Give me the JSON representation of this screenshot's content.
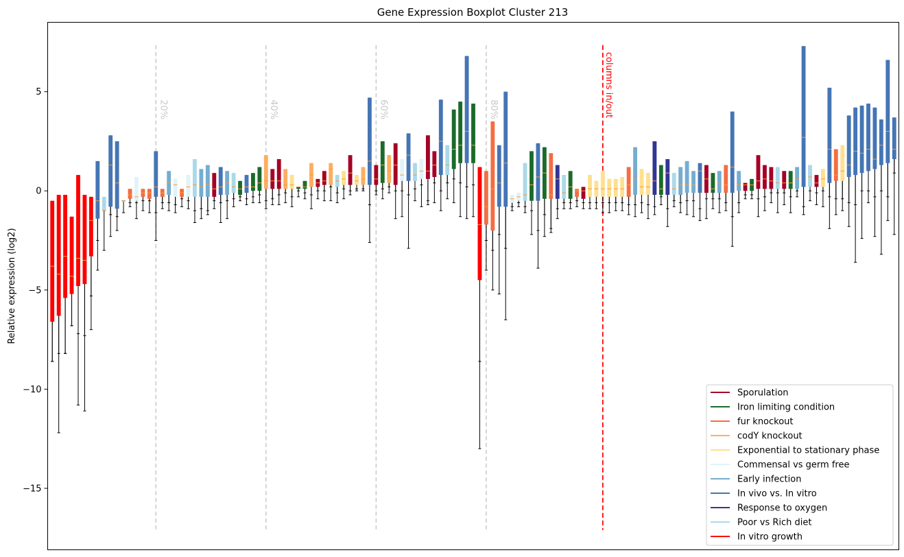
{
  "chart_data": {
    "type": "boxplot",
    "title": "Gene Expression Boxplot Cluster 213",
    "xlabel": "",
    "ylabel": "Relative expression (log2)",
    "ylim": [
      -18.1,
      8.5
    ],
    "yticks": [
      5,
      0,
      -5,
      -10,
      -15
    ],
    "grid": false,
    "legend_position": "bottom-right",
    "legend": [
      {
        "name": "Sporulation",
        "color": "#a50026"
      },
      {
        "name": "Iron limiting condition",
        "color": "#1a6b2a"
      },
      {
        "name": "fur knockout",
        "color": "#f46d43"
      },
      {
        "name": "codY knockout",
        "color": "#fdae61"
      },
      {
        "name": "Exponential to stationary phase",
        "color": "#fee090"
      },
      {
        "name": "Commensal vs germ free",
        "color": "#e0f3f8"
      },
      {
        "name": "Early infection",
        "color": "#74add1"
      },
      {
        "name": "In vivo vs. In vitro",
        "color": "#4575b4"
      },
      {
        "name": "Response to oxygen",
        "color": "#313695"
      },
      {
        "name": "Poor vs Rich diet",
        "color": "#abd9e9"
      },
      {
        "name": "In vitro growth",
        "color": "#ff0000"
      }
    ],
    "percent_markers": [
      {
        "label": "20%",
        "x": 16.5
      },
      {
        "label": "40%",
        "x": 33.5
      },
      {
        "label": "60%",
        "x": 50.5
      },
      {
        "label": "80%",
        "x": 67.5
      }
    ],
    "split_marker": {
      "label": "columns in/out",
      "x": 85.5
    },
    "boxes": [
      [
        -8.6,
        -6.6,
        -3.8,
        -0.5,
        -8.6,
        10
      ],
      [
        -12.2,
        -6.3,
        -4.2,
        -0.2,
        -8.2,
        10
      ],
      [
        -8.2,
        -5.4,
        -3.3,
        -0.2,
        -8.2,
        10
      ],
      [
        -6.8,
        -5.2,
        -4.3,
        -1.3,
        -6.8,
        10
      ],
      [
        -10.8,
        -4.8,
        -3.4,
        0.8,
        -7.2,
        10
      ],
      [
        -11.1,
        -4.7,
        -3.5,
        -0.2,
        -7.3,
        10
      ],
      [
        -7.0,
        -3.3,
        -1.5,
        -0.3,
        -5.3,
        10
      ],
      [
        -4.0,
        -1.4,
        -0.5,
        1.5,
        -2.5,
        7
      ],
      [
        -3.0,
        -1.0,
        -1.0,
        -0.3,
        -1.0,
        9
      ],
      [
        -2.3,
        -0.8,
        1.3,
        2.8,
        -1.2,
        7
      ],
      [
        -2.0,
        -0.9,
        0.4,
        2.5,
        -1.3,
        7
      ],
      [
        -1.1,
        -0.5,
        -0.5,
        -0.5,
        -0.5,
        9
      ],
      [
        -0.8,
        -0.4,
        -0.2,
        0.1,
        -0.6,
        2
      ],
      [
        -1.4,
        -0.5,
        -0.3,
        0.7,
        -0.6,
        5
      ],
      [
        -1.0,
        -0.3,
        -0.1,
        0.1,
        -0.5,
        2
      ],
      [
        -1.1,
        -0.4,
        -0.1,
        0.1,
        -0.5,
        2
      ],
      [
        -2.5,
        -0.3,
        0.2,
        2.0,
        -1.1,
        7
      ],
      [
        -0.9,
        -0.3,
        -0.1,
        0.1,
        -0.6,
        2
      ],
      [
        -1.0,
        -0.2,
        0.4,
        1.0,
        -0.6,
        6
      ],
      [
        -1.1,
        -0.3,
        0.3,
        0.6,
        -0.7,
        5
      ],
      [
        -0.8,
        -0.3,
        -0.1,
        0.1,
        -0.4,
        2
      ],
      [
        -0.9,
        -0.3,
        0.2,
        0.8,
        -0.5,
        5
      ],
      [
        -1.6,
        -0.3,
        0.3,
        1.6,
        -1.0,
        9
      ],
      [
        -1.4,
        -0.3,
        0.2,
        1.1,
        -0.9,
        6
      ],
      [
        -1.2,
        -0.3,
        0.3,
        1.3,
        -1.0,
        6
      ],
      [
        -0.9,
        -0.3,
        0.1,
        0.9,
        -0.5,
        0
      ],
      [
        -1.6,
        -0.2,
        0.2,
        1.2,
        -0.6,
        7
      ],
      [
        -1.4,
        -0.2,
        0.4,
        1.0,
        -0.5,
        6
      ],
      [
        -0.8,
        -0.1,
        0.2,
        0.9,
        -0.4,
        9
      ],
      [
        -0.5,
        -0.2,
        0.1,
        0.5,
        -0.3,
        1
      ],
      [
        -0.7,
        -0.1,
        0.2,
        0.8,
        -0.4,
        7
      ],
      [
        -0.6,
        0.0,
        0.2,
        0.9,
        -0.3,
        1
      ],
      [
        -0.6,
        0.0,
        0.4,
        1.2,
        -0.2,
        1
      ],
      [
        -0.9,
        0.1,
        0.5,
        1.8,
        -0.5,
        3
      ],
      [
        -0.7,
        0.1,
        0.5,
        1.1,
        -0.4,
        0
      ],
      [
        -0.7,
        0.1,
        0.5,
        1.6,
        -0.2,
        0
      ],
      [
        -0.6,
        0.1,
        0.3,
        1.1,
        -0.1,
        3
      ],
      [
        -0.8,
        0.1,
        0.3,
        0.8,
        -0.3,
        4
      ],
      [
        -0.3,
        0.1,
        0.2,
        0.2,
        0.0,
        1
      ],
      [
        -0.4,
        0.1,
        0.2,
        0.5,
        -0.1,
        1
      ],
      [
        -0.9,
        0.2,
        0.8,
        1.4,
        -0.2,
        3
      ],
      [
        -0.4,
        0.2,
        0.4,
        0.6,
        0.0,
        0
      ],
      [
        -0.5,
        0.3,
        0.5,
        1.0,
        0.0,
        0
      ],
      [
        -0.5,
        0.3,
        1.1,
        1.4,
        0.2,
        3
      ],
      [
        -0.6,
        0.2,
        0.5,
        0.8,
        -0.1,
        9
      ],
      [
        -0.4,
        0.3,
        0.6,
        1.0,
        0.1,
        4
      ],
      [
        -0.2,
        0.3,
        0.9,
        1.8,
        0.0,
        0
      ],
      [
        0.0,
        0.3,
        0.5,
        0.8,
        0.1,
        4
      ],
      [
        0.0,
        0.3,
        0.6,
        1.2,
        0.1,
        3
      ],
      [
        -2.6,
        0.3,
        1.5,
        4.7,
        -0.7,
        7
      ],
      [
        -0.2,
        0.3,
        0.6,
        1.3,
        0.0,
        0
      ],
      [
        -0.4,
        0.4,
        1.3,
        2.5,
        0.1,
        1
      ],
      [
        -0.1,
        0.4,
        1.0,
        1.8,
        0.2,
        3
      ],
      [
        -1.4,
        0.3,
        1.3,
        2.4,
        0.0,
        0
      ],
      [
        -1.3,
        0.5,
        0.8,
        1.6,
        0.0,
        5
      ],
      [
        -2.9,
        0.5,
        1.8,
        2.9,
        -0.2,
        7
      ],
      [
        -0.5,
        0.5,
        0.8,
        1.4,
        0.1,
        9
      ],
      [
        -0.8,
        0.6,
        1.0,
        1.6,
        0.3,
        5
      ],
      [
        -0.7,
        0.6,
        1.0,
        2.8,
        -0.5,
        0
      ],
      [
        -0.6,
        0.7,
        1.3,
        2.0,
        0.4,
        0
      ],
      [
        -1.0,
        0.8,
        2.5,
        4.6,
        0.0,
        7
      ],
      [
        -0.4,
        0.8,
        1.3,
        2.3,
        0.4,
        9
      ],
      [
        -0.6,
        1.1,
        2.1,
        4.1,
        0.6,
        1
      ],
      [
        -1.3,
        1.4,
        2.3,
        4.5,
        0.4,
        1
      ],
      [
        -1.4,
        1.4,
        3.0,
        6.8,
        0.2,
        7
      ],
      [
        -1.3,
        1.4,
        2.3,
        4.4,
        0.3,
        1
      ],
      [
        -13.0,
        -4.5,
        -1.7,
        1.2,
        -8.6,
        10
      ],
      [
        -4.0,
        -1.7,
        -0.8,
        1.0,
        -2.5,
        2
      ],
      [
        -5.0,
        -2.0,
        0.1,
        3.5,
        -3.0,
        2
      ],
      [
        -5.2,
        -0.8,
        0.4,
        2.3,
        -2.2,
        7
      ],
      [
        -6.5,
        -0.8,
        1.4,
        5.0,
        -2.9,
        7
      ],
      [
        -1.0,
        -0.6,
        -0.4,
        -0.2,
        -0.8,
        5
      ],
      [
        -0.8,
        -0.5,
        -0.3,
        -0.1,
        -0.6,
        5
      ],
      [
        -1.1,
        -0.5,
        -0.2,
        1.4,
        -0.8,
        9
      ],
      [
        -2.2,
        -0.5,
        0.3,
        2.0,
        -1.0,
        1
      ],
      [
        -3.9,
        -0.5,
        0.7,
        2.4,
        -2.0,
        7
      ],
      [
        -2.3,
        -0.4,
        0.9,
        2.2,
        -1.2,
        1
      ],
      [
        -2.1,
        -0.4,
        -0.2,
        1.9,
        -1.9,
        2
      ],
      [
        -1.4,
        -0.4,
        0.6,
        1.3,
        -0.9,
        8
      ],
      [
        -0.9,
        -0.4,
        -0.1,
        0.8,
        -0.6,
        9
      ],
      [
        -0.9,
        -0.4,
        0.2,
        1.0,
        -0.6,
        1
      ],
      [
        -0.8,
        -0.3,
        0.0,
        0.1,
        -0.5,
        2
      ],
      [
        -0.9,
        -0.4,
        0.0,
        0.2,
        -0.6,
        0
      ],
      [
        -0.9,
        -0.3,
        0.1,
        0.8,
        -0.6,
        4
      ],
      [
        -0.9,
        -0.3,
        0.1,
        0.5,
        -0.6,
        4
      ],
      [
        -1.1,
        -0.3,
        0.1,
        1.0,
        -0.6,
        4
      ],
      [
        -1.1,
        -0.3,
        0.1,
        0.6,
        -0.6,
        4
      ],
      [
        -1.0,
        -0.3,
        0.1,
        0.6,
        -0.6,
        4
      ],
      [
        -1.0,
        -0.3,
        0.1,
        0.7,
        -0.6,
        4
      ],
      [
        -1.2,
        -0.3,
        0.3,
        1.2,
        -0.7,
        2
      ],
      [
        -1.3,
        -0.2,
        0.6,
        2.2,
        -0.7,
        6
      ],
      [
        -1.1,
        -0.2,
        0.2,
        1.1,
        -0.6,
        4
      ],
      [
        -1.4,
        -0.2,
        0.2,
        0.9,
        -0.7,
        4
      ],
      [
        -1.2,
        -0.2,
        0.5,
        2.5,
        -0.8,
        8
      ],
      [
        -0.7,
        -0.2,
        0.1,
        1.3,
        -0.3,
        1
      ],
      [
        -1.8,
        -0.2,
        0.9,
        1.6,
        -0.9,
        8
      ],
      [
        -0.8,
        -0.2,
        0.1,
        0.9,
        -0.5,
        9
      ],
      [
        -1.1,
        -0.2,
        0.3,
        1.2,
        -0.6,
        6
      ],
      [
        -1.2,
        -0.1,
        0.3,
        1.5,
        -0.5,
        6
      ],
      [
        -1.3,
        -0.1,
        0.3,
        1.0,
        -0.5,
        6
      ],
      [
        -1.5,
        -0.1,
        1.0,
        1.4,
        -0.9,
        7
      ],
      [
        -1.4,
        -0.1,
        0.6,
        1.3,
        -0.4,
        0
      ],
      [
        -0.9,
        -0.1,
        0.1,
        0.9,
        -0.4,
        1
      ],
      [
        -1.1,
        -0.1,
        0.4,
        1.0,
        -0.4,
        6
      ],
      [
        -1.0,
        -0.1,
        0.3,
        1.3,
        -0.6,
        2
      ],
      [
        -2.8,
        -0.1,
        1.2,
        4.0,
        -1.3,
        7
      ],
      [
        -1.1,
        0.0,
        0.3,
        1.0,
        -0.6,
        6
      ],
      [
        -0.4,
        0.0,
        0.3,
        0.4,
        -0.2,
        0
      ],
      [
        -0.4,
        0.0,
        0.3,
        0.6,
        -0.2,
        1
      ],
      [
        -1.3,
        0.1,
        0.5,
        1.8,
        -0.4,
        0
      ],
      [
        -1.0,
        0.1,
        0.6,
        1.3,
        -0.3,
        0
      ],
      [
        -0.6,
        0.1,
        0.5,
        1.2,
        -0.1,
        0
      ],
      [
        -1.1,
        0.1,
        0.4,
        1.2,
        -0.1,
        9
      ],
      [
        -0.7,
        0.1,
        0.4,
        1.0,
        -0.1,
        0
      ],
      [
        -1.1,
        0.1,
        0.4,
        1.0,
        -0.3,
        1
      ],
      [
        -0.3,
        0.1,
        0.6,
        1.2,
        0.0,
        6
      ],
      [
        -0.8,
        0.2,
        2.7,
        7.3,
        -1.2,
        7
      ],
      [
        -0.5,
        0.2,
        0.7,
        1.3,
        0.0,
        9
      ],
      [
        -0.7,
        0.2,
        0.4,
        0.8,
        -0.1,
        0
      ],
      [
        -0.8,
        0.2,
        0.6,
        1.1,
        0.0,
        4
      ],
      [
        -1.9,
        0.4,
        2.1,
        5.2,
        -0.3,
        7
      ],
      [
        -1.2,
        0.5,
        0.8,
        2.1,
        -0.4,
        2
      ],
      [
        -1.0,
        0.5,
        1.0,
        2.3,
        -0.4,
        4
      ],
      [
        -1.8,
        0.7,
        1.3,
        3.8,
        -0.6,
        7
      ],
      [
        -3.6,
        0.8,
        2.0,
        4.2,
        -0.7,
        7
      ],
      [
        -2.4,
        0.9,
        1.9,
        4.3,
        0.0,
        7
      ],
      [
        -0.6,
        1.0,
        2.1,
        4.4,
        0.0,
        7
      ],
      [
        -2.3,
        1.1,
        1.6,
        4.2,
        -0.3,
        7
      ],
      [
        -3.2,
        1.3,
        2.3,
        3.6,
        0.0,
        7
      ],
      [
        -1.5,
        1.4,
        3.0,
        6.6,
        -0.3,
        7
      ],
      [
        -2.2,
        1.6,
        2.1,
        3.7,
        0.9,
        7
      ]
    ]
  }
}
